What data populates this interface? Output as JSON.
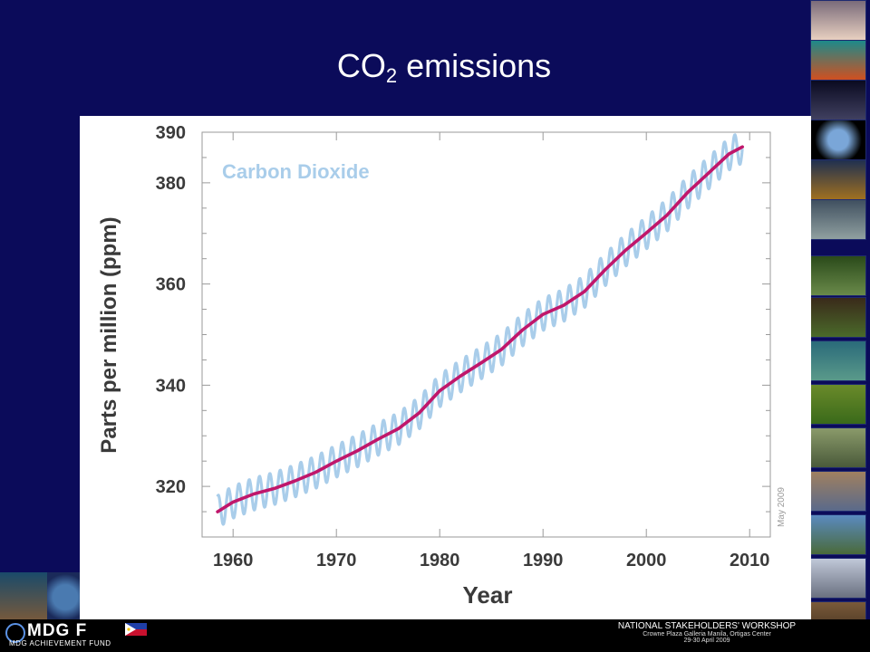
{
  "slide": {
    "title_main": "CO",
    "title_sub": "2",
    "title_rest": " emissions"
  },
  "footer": {
    "logo": "MDG F",
    "logo_sub": "MDG ACHIEVEMENT FUND",
    "workshop_title": "NATIONAL STAKEHOLDERS' WORKSHOP",
    "workshop_venue": "Crowne Plaza Galleria Manila, Ortigas Center",
    "workshop_dates": "29-30 April 2009"
  },
  "chart_data": {
    "type": "line",
    "title": "",
    "inset_label": "Carbon Dioxide",
    "xlabel": "Year",
    "ylabel": "Parts per million (ppm)",
    "date_stamp": "May 2009",
    "xlim": [
      1957,
      2012
    ],
    "ylim": [
      310,
      390
    ],
    "x_ticks": [
      1960,
      1970,
      1980,
      1990,
      2000,
      2010
    ],
    "y_ticks": [
      320,
      340,
      360,
      380,
      390
    ],
    "grid": false,
    "series": [
      {
        "style": "seasonal",
        "color": "#a9cdea",
        "amplitude": 3.2
      },
      {
        "style": "trend",
        "color": "#c0176b",
        "x": [
          1958.5,
          1960,
          1962,
          1964,
          1966,
          1968,
          1970,
          1972,
          1974,
          1976,
          1978,
          1980,
          1982,
          1984,
          1986,
          1988,
          1990,
          1992,
          1994,
          1996,
          1998,
          2000,
          2002,
          2004,
          2006,
          2008,
          2009.3
        ],
        "y": [
          315.0,
          316.9,
          318.5,
          319.6,
          321.1,
          322.8,
          325.0,
          327.0,
          329.3,
          331.4,
          334.5,
          338.9,
          341.8,
          344.4,
          347.1,
          350.9,
          354.0,
          355.8,
          358.5,
          362.8,
          366.7,
          370.1,
          373.6,
          378.1,
          381.9,
          385.7,
          387.1
        ]
      }
    ]
  }
}
